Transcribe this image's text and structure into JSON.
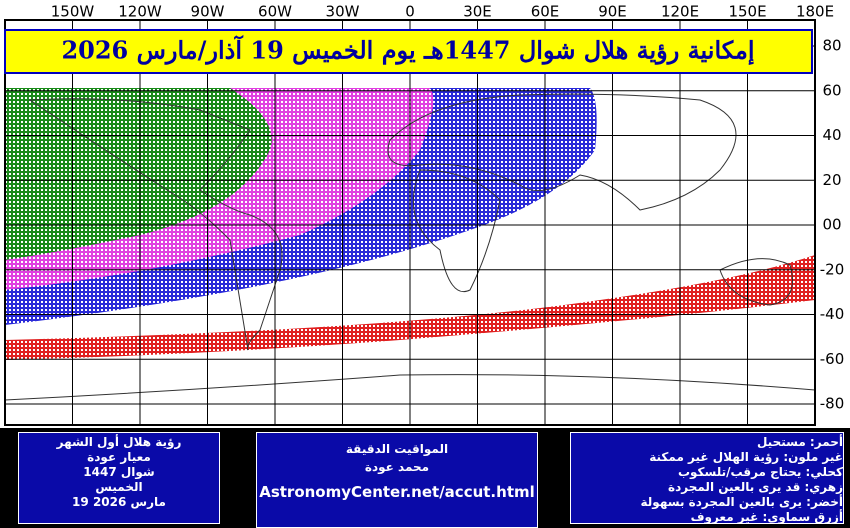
{
  "title": "إمكانية رؤية هلال شوال 1447هـ يوم الخميس 19 آذار/مارس 2026",
  "lon_labels": [
    "150W",
    "120W",
    "90W",
    "60W",
    "30W",
    "0",
    "30E",
    "60E",
    "90E",
    "120E",
    "150E",
    "180E"
  ],
  "lat_labels": [
    "80",
    "60",
    "40",
    "20",
    "00",
    "-20",
    "-40",
    "-60",
    "-80"
  ],
  "boxes": {
    "left": [
      "رؤية هلال أول الشهر",
      "معيار عودة",
      "شوال 1447",
      "الخميس",
      "19 مارس 2026"
    ],
    "center": [
      "المواقيت الدقيقة",
      "محمد عودة",
      "AstronomyCenter.net/accut.html"
    ],
    "right": [
      "أحمر: مستحيل",
      "غير ملون: رؤية الهلال غير ممكنة",
      "كحلي: يحتاج مرقب/تلسكوب",
      "زهري: قد يرى بالعين المجردة",
      "أخضر: يرى بالعين المجردة بسهولة",
      "أزرق سماوي: غير معروف"
    ]
  }
}
